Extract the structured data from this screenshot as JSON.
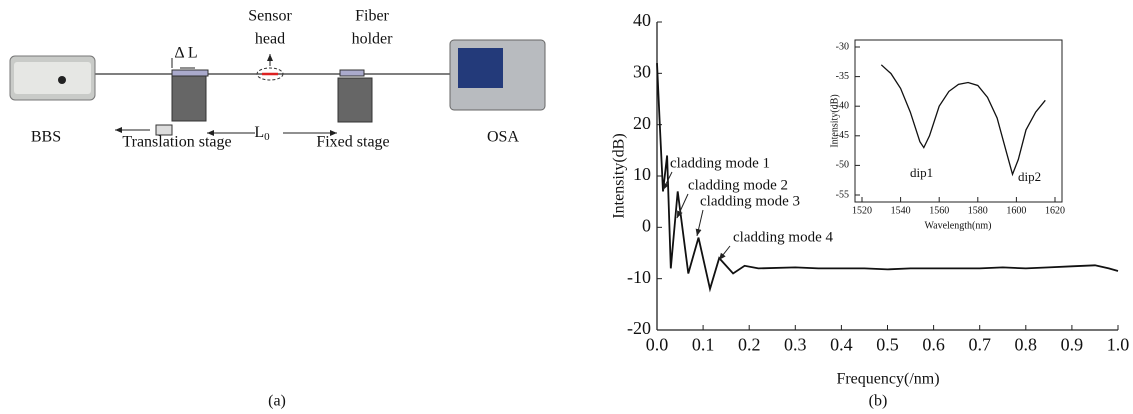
{
  "diagram": {
    "bbs": "BBS",
    "osa": "OSA",
    "translation_stage": "Translation stage",
    "fixed_stage": "Fixed stage",
    "sensor_head": [
      "Sensor",
      "head"
    ],
    "fiber_holder": [
      "Fiber",
      "holder"
    ],
    "delta_l": "Δ L",
    "l0": {
      "label": "L",
      "subscript": "0"
    },
    "caption": "(a)"
  },
  "chart_data": [
    {
      "type": "line",
      "caption": "(b)",
      "x_label": "Frequency(/nm)",
      "y_label": "Intensity(dB)",
      "xlim": [
        0,
        1
      ],
      "ylim": [
        -20,
        40
      ],
      "xticks": [
        {
          "value": 0,
          "label": "0.0"
        },
        0.1,
        0.2,
        0.3,
        0.4,
        0.5,
        0.6,
        0.7,
        0.8,
        0.9,
        {
          "value": 1,
          "label": "1.0"
        }
      ],
      "yticks": [
        -20,
        -10,
        0,
        10,
        20,
        30,
        40
      ],
      "color": "#111111",
      "x": [
        0,
        0.006,
        0.013,
        0.022,
        0.03,
        0.045,
        0.068,
        0.09,
        0.115,
        0.135,
        0.165,
        0.19,
        0.22,
        0.3,
        0.35,
        0.4,
        0.45,
        0.5,
        0.55,
        0.6,
        0.65,
        0.7,
        0.75,
        0.8,
        0.85,
        0.9,
        0.95,
        0.98,
        1.0
      ],
      "values": [
        32,
        20,
        7,
        14,
        -8,
        7,
        -9,
        -2,
        -12,
        -6,
        -9,
        -7.5,
        -8,
        -7.8,
        -8,
        -8,
        -8,
        -8.2,
        -8,
        -8,
        -8,
        -8,
        -7.8,
        -8,
        -7.8,
        -7.6,
        -7.4,
        -8,
        -8.5
      ],
      "annotations": [
        "cladding mode 1",
        "cladding mode 2",
        "cladding mode 3",
        "cladding mode 4"
      ]
    },
    {
      "type": "line",
      "x_label": "Wavelength(nm)",
      "y_label": "Intensity(dB)",
      "xlim": [
        1520,
        1620
      ],
      "ylim": [
        -55,
        -30
      ],
      "xticks": [
        1520,
        1540,
        1560,
        1580,
        1600,
        1620
      ],
      "yticks": [
        -55,
        -50,
        -45,
        -40,
        -35,
        -30
      ],
      "color": "#111111",
      "x": [
        1530,
        1535,
        1540,
        1545,
        1550,
        1552,
        1555,
        1560,
        1565,
        1570,
        1575,
        1580,
        1585,
        1590,
        1595,
        1598,
        1601,
        1605,
        1610,
        1615
      ],
      "values": [
        -33,
        -34.5,
        -37,
        -41,
        -46,
        -47,
        -45,
        -40,
        -37.5,
        -36.3,
        -36,
        -36.5,
        -38.5,
        -42,
        -48,
        -51.5,
        -49,
        -44,
        -41,
        -39
      ],
      "annotations": [
        "dip1",
        "dip2"
      ]
    }
  ]
}
